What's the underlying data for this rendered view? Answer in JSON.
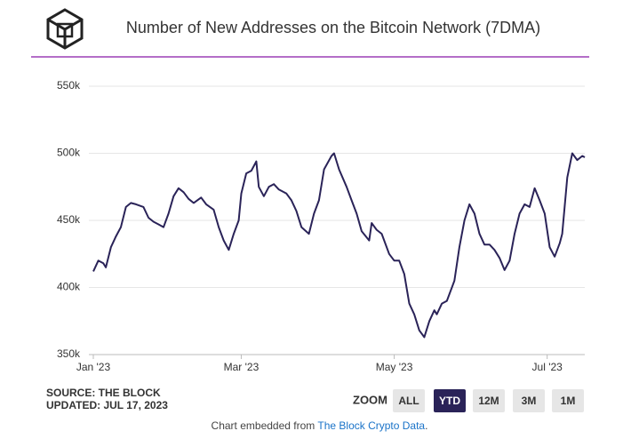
{
  "chart_data": {
    "type": "line",
    "title": "Number of New Addresses on the Bitcoin Network (7DMA)",
    "x": [
      0,
      2,
      4,
      5,
      7,
      9,
      11,
      13,
      15,
      17,
      20,
      22,
      24,
      26,
      28,
      30,
      32,
      34,
      36,
      38,
      40,
      43,
      45,
      48,
      50,
      52,
      54,
      56,
      58,
      59,
      61,
      63,
      65,
      66,
      68,
      70,
      72,
      74,
      77,
      79,
      81,
      83,
      86,
      88,
      90,
      92,
      95,
      96,
      98,
      101,
      103,
      105,
      107,
      110,
      111,
      113,
      115,
      118,
      120,
      122,
      124,
      126,
      128,
      130,
      132,
      134,
      136,
      137,
      139,
      141,
      144,
      146,
      148,
      150,
      152,
      154,
      156,
      158,
      160,
      162,
      164,
      166,
      168,
      170,
      172,
      174,
      176,
      178,
      180,
      182,
      184,
      186,
      187,
      189,
      191,
      193,
      195,
      196
    ],
    "series": [
      {
        "name": "New Addresses",
        "color": "#2a2358",
        "values": [
          412000,
          420000,
          418000,
          415000,
          430000,
          438000,
          445000,
          460000,
          463000,
          462000,
          460000,
          452000,
          449000,
          447000,
          445000,
          455000,
          468000,
          474000,
          471000,
          466000,
          463000,
          467000,
          462000,
          458000,
          445000,
          435000,
          428000,
          440000,
          450000,
          470000,
          485000,
          487000,
          494000,
          475000,
          468000,
          475000,
          477000,
          473000,
          470000,
          465000,
          457000,
          445000,
          440000,
          455000,
          465000,
          488000,
          498000,
          500000,
          488000,
          475000,
          465000,
          455000,
          442000,
          435000,
          448000,
          443000,
          440000,
          425000,
          420000,
          420000,
          410000,
          388000,
          380000,
          368000,
          363000,
          375000,
          383000,
          380000,
          388000,
          390000,
          405000,
          430000,
          450000,
          462000,
          455000,
          440000,
          432000,
          432000,
          428000,
          422000,
          413000,
          420000,
          440000,
          455000,
          462000,
          460000,
          474000,
          465000,
          455000,
          430000,
          423000,
          433000,
          440000,
          482000,
          500000,
          495000,
          498000,
          497000
        ]
      }
    ],
    "xlim": [
      0,
      196
    ],
    "xticks": [
      {
        "value": 0,
        "label": "Jan '23"
      },
      {
        "value": 59,
        "label": "Mar '23"
      },
      {
        "value": 120,
        "label": "May '23"
      },
      {
        "value": 181,
        "label": "Jul '23"
      }
    ],
    "ylim": [
      350000,
      550000
    ],
    "yticks": [
      {
        "value": 350000,
        "label": "350k"
      },
      {
        "value": 400000,
        "label": "400k"
      },
      {
        "value": 450000,
        "label": "450k"
      },
      {
        "value": 500000,
        "label": "500k"
      },
      {
        "value": 550000,
        "label": "550k"
      }
    ],
    "grid": true,
    "source": "SOURCE: THE BLOCK",
    "updated": "UPDATED: JUL 17, 2023",
    "zoom_label": "ZOOM",
    "zoom_buttons": [
      "ALL",
      "YTD",
      "12M",
      "3M",
      "1M"
    ],
    "zoom_active": "YTD",
    "footer": {
      "prefix": "Chart embedded from ",
      "link": "The Block Crypto Data",
      "suffix": "."
    }
  }
}
